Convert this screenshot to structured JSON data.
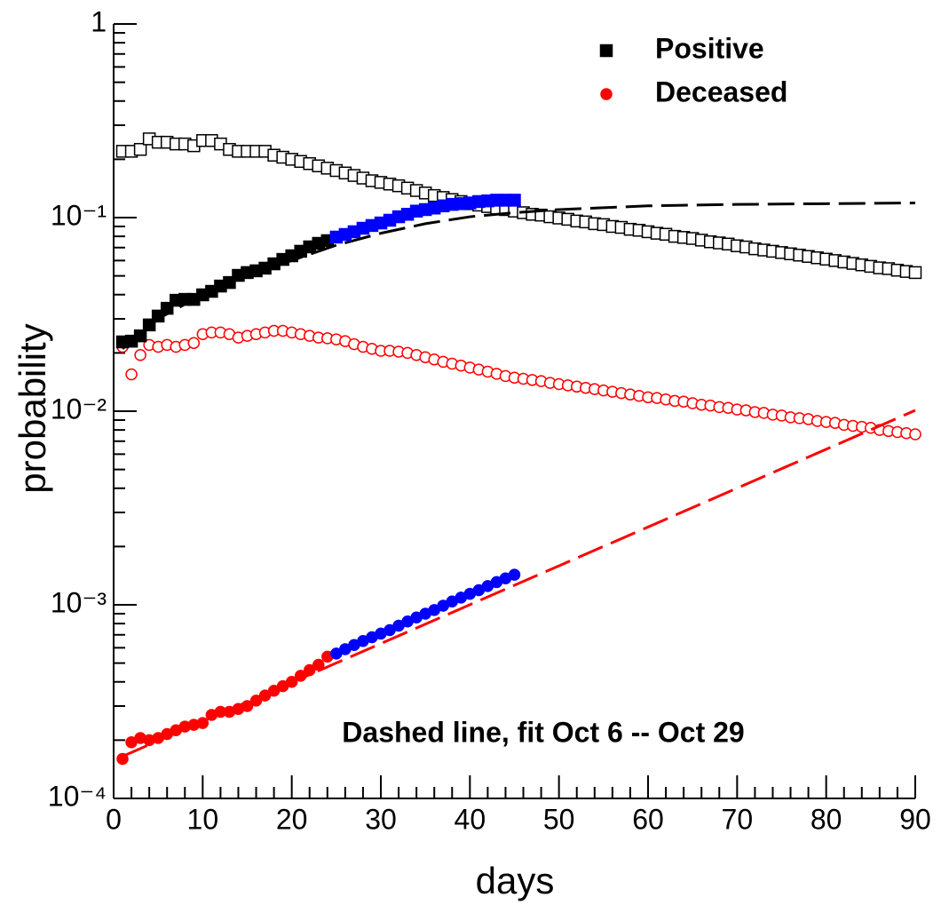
{
  "chart_data": {
    "type": "scatter",
    "x_label": "days",
    "y_label": "probability",
    "log_y": true,
    "annotation": "Dashed line, fit Oct 6 -- Oct 29",
    "legend": "top-right",
    "xlim": [
      0,
      90
    ],
    "xticks": [
      0,
      10,
      20,
      30,
      40,
      50,
      60,
      70,
      80,
      90
    ],
    "ylim": [
      0.0001,
      1
    ],
    "yticks": [
      {
        "value": 0.0001,
        "label": "10⁻⁴"
      },
      {
        "value": 0.001,
        "label": "10⁻³"
      },
      {
        "value": 0.01,
        "label": "10⁻²"
      },
      {
        "value": 0.1,
        "label": "10⁻¹"
      },
      1
    ],
    "series": [
      {
        "color": "#000000",
        "marker": "square",
        "filled": false,
        "x": [
          1,
          2,
          3,
          4,
          5,
          6,
          7,
          8,
          9,
          10,
          11,
          12,
          13,
          14,
          15,
          16,
          17,
          18,
          19,
          20,
          21,
          22,
          23,
          24,
          25,
          26,
          27,
          28,
          29,
          30,
          31,
          32,
          33,
          34,
          35,
          36,
          37,
          38,
          39,
          40,
          41,
          42,
          43,
          44,
          45,
          46,
          47,
          48,
          49,
          50,
          51,
          52,
          53,
          54,
          55,
          56,
          57,
          58,
          59,
          60,
          61,
          62,
          63,
          64,
          65,
          66,
          67,
          68,
          69,
          70,
          71,
          72,
          73,
          74,
          75,
          76,
          77,
          78,
          79,
          80,
          81,
          82,
          83,
          84,
          85,
          86,
          87,
          88,
          89,
          90
        ],
        "values": [
          0.22,
          0.22,
          0.225,
          0.255,
          0.245,
          0.245,
          0.24,
          0.24,
          0.235,
          0.25,
          0.25,
          0.24,
          0.225,
          0.22,
          0.22,
          0.22,
          0.22,
          0.21,
          0.205,
          0.2,
          0.195,
          0.19,
          0.185,
          0.18,
          0.175,
          0.17,
          0.165,
          0.16,
          0.155,
          0.152,
          0.149,
          0.146,
          0.142,
          0.138,
          0.134,
          0.13,
          0.127,
          0.124,
          0.121,
          0.118,
          0.116,
          0.114,
          0.112,
          0.11,
          0.108,
          0.106,
          0.104,
          0.103,
          0.101,
          0.0995,
          0.098,
          0.096,
          0.095,
          0.093,
          0.092,
          0.09,
          0.089,
          0.087,
          0.086,
          0.0845,
          0.083,
          0.082,
          0.08,
          0.079,
          0.078,
          0.0765,
          0.075,
          0.074,
          0.073,
          0.0715,
          0.0705,
          0.069,
          0.068,
          0.067,
          0.066,
          0.065,
          0.064,
          0.063,
          0.062,
          0.061,
          0.06,
          0.059,
          0.058,
          0.057,
          0.056,
          0.055,
          0.0545,
          0.0535,
          0.0527,
          0.052
        ]
      },
      {
        "color": "#ff0000",
        "marker": "circle",
        "filled": false,
        "x": [
          1,
          2,
          3,
          4,
          5,
          6,
          7,
          8,
          9,
          10,
          11,
          12,
          13,
          14,
          15,
          16,
          17,
          18,
          19,
          20,
          21,
          22,
          23,
          24,
          25,
          26,
          27,
          28,
          29,
          30,
          31,
          32,
          33,
          34,
          35,
          36,
          37,
          38,
          39,
          40,
          41,
          42,
          43,
          44,
          45,
          46,
          47,
          48,
          49,
          50,
          51,
          52,
          53,
          54,
          55,
          56,
          57,
          58,
          59,
          60,
          61,
          62,
          63,
          64,
          65,
          66,
          67,
          68,
          69,
          70,
          71,
          72,
          73,
          74,
          75,
          76,
          77,
          78,
          79,
          80,
          81,
          82,
          83,
          84,
          85,
          86,
          87,
          88,
          89,
          90
        ],
        "values": [
          0.0215,
          0.0155,
          0.0195,
          0.022,
          0.0215,
          0.022,
          0.0215,
          0.022,
          0.0225,
          0.025,
          0.0255,
          0.0255,
          0.025,
          0.024,
          0.0245,
          0.025,
          0.0255,
          0.026,
          0.026,
          0.0255,
          0.025,
          0.0245,
          0.024,
          0.0238,
          0.0235,
          0.023,
          0.0222,
          0.0215,
          0.021,
          0.0205,
          0.0205,
          0.0203,
          0.02,
          0.0195,
          0.019,
          0.0185,
          0.018,
          0.0176,
          0.0172,
          0.0168,
          0.0164,
          0.016,
          0.0156,
          0.0152,
          0.0149,
          0.0147,
          0.0145,
          0.0143,
          0.014,
          0.0138,
          0.0136,
          0.0134,
          0.0132,
          0.013,
          0.0128,
          0.0126,
          0.0124,
          0.0122,
          0.012,
          0.0118,
          0.0117,
          0.0115,
          0.0113,
          0.0112,
          0.011,
          0.0108,
          0.0107,
          0.0105,
          0.0104,
          0.0102,
          0.0101,
          0.0099,
          0.0098,
          0.0096,
          0.0095,
          0.0093,
          0.0092,
          0.0091,
          0.0089,
          0.0088,
          0.0087,
          0.0085,
          0.0084,
          0.0083,
          0.0082,
          0.008,
          0.0079,
          0.0078,
          0.0077,
          0.0076
        ]
      },
      {
        "color": "#000000",
        "line": "dashed",
        "x": [
          1,
          5,
          10,
          15,
          20,
          25,
          30,
          35,
          40,
          45,
          50,
          60,
          70,
          80,
          90
        ],
        "values": [
          0.021,
          0.03,
          0.04,
          0.05,
          0.06,
          0.072,
          0.083,
          0.093,
          0.101,
          0.106,
          0.11,
          0.115,
          0.117,
          0.118,
          0.119
        ]
      },
      {
        "color": "#ff0000",
        "line": "dashed",
        "x": [
          1,
          90
        ],
        "values": [
          0.000165,
          0.0101
        ]
      },
      {
        "name": "Positive",
        "color": "#000000",
        "marker": "square",
        "filled": true,
        "x": [
          1,
          2,
          3,
          4,
          5,
          6,
          7,
          8,
          9,
          10,
          11,
          12,
          13,
          14,
          15,
          16,
          17,
          18,
          19,
          20,
          21,
          22,
          23,
          24
        ],
        "values": [
          0.0228,
          0.023,
          0.0245,
          0.0279,
          0.031,
          0.034,
          0.0374,
          0.0378,
          0.0378,
          0.0399,
          0.0416,
          0.0443,
          0.0462,
          0.0503,
          0.052,
          0.0531,
          0.0548,
          0.0577,
          0.0608,
          0.0635,
          0.067,
          0.0706,
          0.0736,
          0.076
        ]
      },
      {
        "color": "#0000ff",
        "marker": "square",
        "filled": true,
        "x": [
          25,
          26,
          27,
          28,
          29,
          30,
          31,
          32,
          33,
          34,
          35,
          36,
          37,
          38,
          39,
          40,
          41,
          42,
          43,
          44,
          45
        ],
        "values": [
          0.0793,
          0.0818,
          0.0845,
          0.0881,
          0.091,
          0.0938,
          0.0969,
          0.101,
          0.104,
          0.108,
          0.11,
          0.112,
          0.115,
          0.117,
          0.118,
          0.119,
          0.121,
          0.122,
          0.123,
          0.123,
          0.123
        ]
      },
      {
        "name": "Deceased",
        "color": "#ff0000",
        "marker": "circle",
        "filled": true,
        "x": [
          1,
          2,
          3,
          4,
          5,
          6,
          7,
          8,
          9,
          10,
          11,
          12,
          13,
          14,
          15,
          16,
          17,
          18,
          19,
          20,
          21,
          22,
          23,
          24
        ],
        "values": [
          0.00016,
          0.000195,
          0.000205,
          0.0002,
          0.000205,
          0.000215,
          0.000225,
          0.000235,
          0.00024,
          0.000245,
          0.00027,
          0.00028,
          0.00028,
          0.00029,
          0.0003,
          0.00032,
          0.00034,
          0.00036,
          0.00038,
          0.0004,
          0.00043,
          0.00046,
          0.00049,
          0.00054
        ]
      },
      {
        "color": "#0000ff",
        "marker": "circle",
        "filled": true,
        "x": [
          25,
          26,
          27,
          28,
          29,
          30,
          31,
          32,
          33,
          34,
          35,
          36,
          37,
          38,
          39,
          40,
          41,
          42,
          43,
          44,
          45
        ],
        "values": [
          0.00056,
          0.00059,
          0.00062,
          0.00065,
          0.00068,
          0.00071,
          0.00074,
          0.00078,
          0.00082,
          0.00086,
          0.0009,
          0.00094,
          0.00099,
          0.00104,
          0.00109,
          0.00114,
          0.00119,
          0.00125,
          0.00131,
          0.00137,
          0.00143
        ]
      }
    ]
  }
}
